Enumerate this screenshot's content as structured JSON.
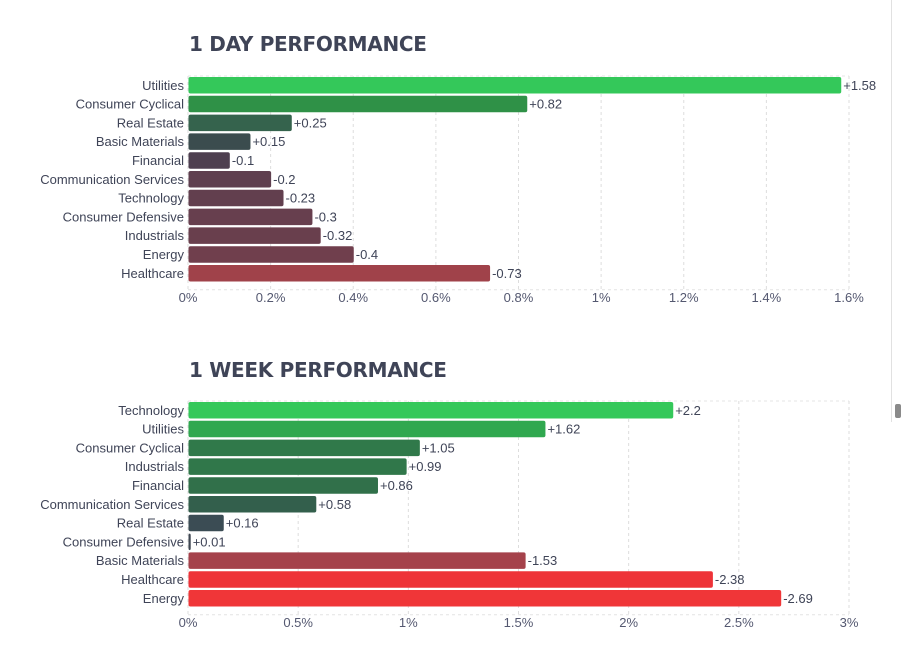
{
  "chart_data": [
    {
      "type": "bar",
      "orientation": "horizontal",
      "title": "1 DAY PERFORMANCE",
      "categories": [
        "Utilities",
        "Consumer Cyclical",
        "Real Estate",
        "Basic Materials",
        "Financial",
        "Communication Services",
        "Technology",
        "Consumer Defensive",
        "Industrials",
        "Energy",
        "Healthcare"
      ],
      "values": [
        1.58,
        0.82,
        0.25,
        0.15,
        -0.1,
        -0.2,
        -0.23,
        -0.3,
        -0.32,
        -0.4,
        -0.73
      ],
      "value_labels": [
        "+1.58",
        "+0.82",
        "+0.25",
        "+0.15",
        "-0.1",
        "-0.2",
        "-0.23",
        "-0.3",
        "-0.32",
        "-0.4",
        "-0.73"
      ],
      "colors": [
        "#34c85a",
        "#2f9147",
        "#35634d",
        "#3b4c4e",
        "#4e3f50",
        "#5f3f4f",
        "#623f4e",
        "#673f4e",
        "#693f4d",
        "#703f4d",
        "#a0424a"
      ],
      "xlim": [
        0,
        1.6
      ],
      "x_ticks": [
        0,
        0.2,
        0.4,
        0.6,
        0.8,
        1,
        1.2,
        1.4,
        1.6
      ],
      "x_tick_labels": [
        "0%",
        "0.2%",
        "0.4%",
        "0.6%",
        "0.8%",
        "1%",
        "1.2%",
        "1.4%",
        "1.6%"
      ],
      "xlabel": "",
      "ylabel": "",
      "grid": true
    },
    {
      "type": "bar",
      "orientation": "horizontal",
      "title": "1 WEEK PERFORMANCE",
      "categories": [
        "Technology",
        "Utilities",
        "Consumer Cyclical",
        "Industrials",
        "Financial",
        "Communication Services",
        "Real Estate",
        "Consumer Defensive",
        "Basic Materials",
        "Healthcare",
        "Energy"
      ],
      "values": [
        2.2,
        1.62,
        1.05,
        0.99,
        0.86,
        0.58,
        0.16,
        0.01,
        -1.53,
        -2.38,
        -2.69
      ],
      "value_labels": [
        "+2.2",
        "+1.62",
        "+1.05",
        "+0.99",
        "+0.86",
        "+0.58",
        "+0.16",
        "+0.01",
        "-1.53",
        "-2.38",
        "-2.69"
      ],
      "colors": [
        "#34c85a",
        "#30a84f",
        "#30794a",
        "#30774a",
        "#31704a",
        "#335f4c",
        "#3b4c54",
        "#3e4651",
        "#a5424b",
        "#ee3338",
        "#f03638"
      ],
      "xlim": [
        0,
        3
      ],
      "x_ticks": [
        0,
        0.5,
        1,
        1.5,
        2,
        2.5,
        3
      ],
      "x_tick_labels": [
        "0%",
        "0.5%",
        "1%",
        "1.5%",
        "2%",
        "2.5%",
        "3%"
      ],
      "xlabel": "",
      "ylabel": "",
      "grid": true
    }
  ]
}
